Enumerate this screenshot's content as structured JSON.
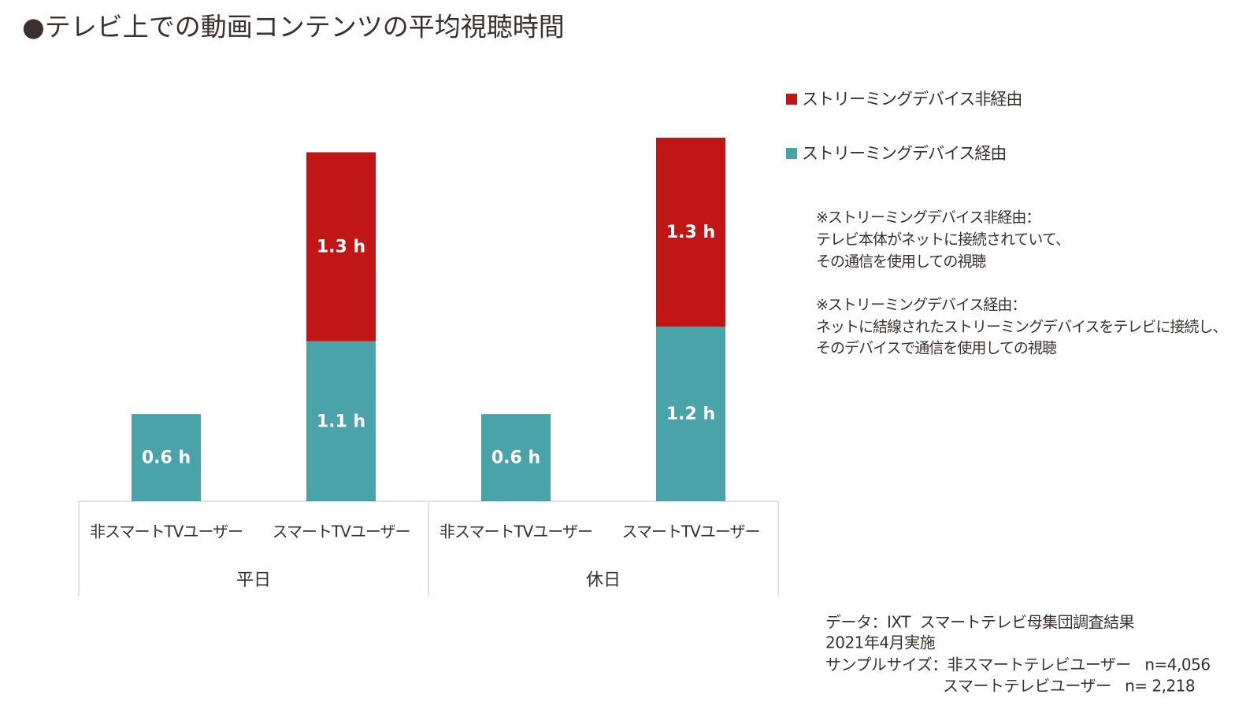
{
  "chart_data": {
    "type": "stacked-bar",
    "title": "●テレビ上での動画コンテンツの平均視聴時間",
    "categories": [
      "非スマートTVユーザー",
      "スマートTVユーザー",
      "非スマートTVユーザー",
      "スマートTVユーザー"
    ],
    "groups": [
      "平日",
      "休日"
    ],
    "series": [
      {
        "name": "ストリーミングデバイス経由",
        "color": "#4ba3aa",
        "values": [
          0.6,
          1.1,
          0.6,
          1.2
        ],
        "value_labels": [
          "0.6 h",
          "1.1 h",
          "0.6 h",
          "1.2 h"
        ]
      },
      {
        "name": "ストリーミングデバイス非経由",
        "color": "#c01716",
        "values": [
          null,
          1.3,
          null,
          1.3
        ],
        "value_labels": [
          null,
          "1.3 h",
          null,
          "1.3 h"
        ]
      }
    ],
    "notes": [
      "※ストリーミングデバイス非経由：",
      "テレビ本体がネットに接続されていて、",
      "その通信を使用しての視聴",
      "※ストリーミングデバイス経由：",
      "ネットに結線されたストリーミングデバイスをテレビに接続し、",
      "そのデバイスで通信を使用しての視聴"
    ],
    "source": [
      "データ：IXT  スマートテレビ母集団調査結果",
      "2021年4月実施",
      "サンプルサイズ：非スマートテレビユーザー   n=4,056",
      "スマートテレビユーザー   n= 2,218"
    ]
  }
}
